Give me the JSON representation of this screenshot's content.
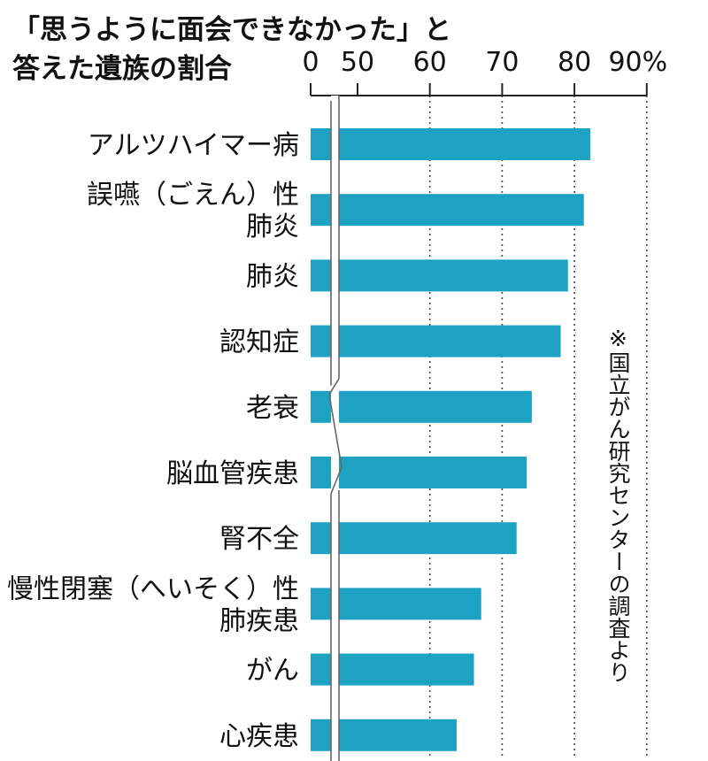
{
  "title_lines": [
    "「思うように面会できなかった」と",
    "答えた遺族の割合"
  ],
  "source_note": "※国立がん研究センターの調査より",
  "chart_data": {
    "type": "bar",
    "orientation": "horizontal",
    "title": "「思うように面会できなかった」と答えた遺族の割合",
    "axis_break": true,
    "axis_break_range": [
      0,
      45
    ],
    "xlim": [
      45,
      90
    ],
    "xticks": [
      {
        "value": 0,
        "label": "0"
      },
      {
        "value": 50,
        "label": "50"
      },
      {
        "value": 60,
        "label": "60"
      },
      {
        "value": 70,
        "label": "70"
      },
      {
        "value": 80,
        "label": "80"
      },
      {
        "value": 90,
        "label": "90%"
      }
    ],
    "grid": "dotted vertical at 60, 70, 80, 90",
    "bar_color": "#1ea2c4",
    "categories": [
      [
        "アルツハイマー病"
      ],
      [
        "誤嚥（ごえん）性",
        "肺炎"
      ],
      [
        "肺炎"
      ],
      [
        "認知症"
      ],
      [
        "老衰"
      ],
      [
        "脳血管疾患"
      ],
      [
        "腎不全"
      ],
      [
        "慢性閉塞（へいそく）性",
        "肺疾患"
      ],
      [
        "がん"
      ],
      [
        "心疾患"
      ]
    ],
    "values": [
      82.2,
      81.3,
      79.1,
      78.1,
      74.1,
      73.4,
      72.0,
      67.1,
      66.1,
      63.7
    ]
  }
}
